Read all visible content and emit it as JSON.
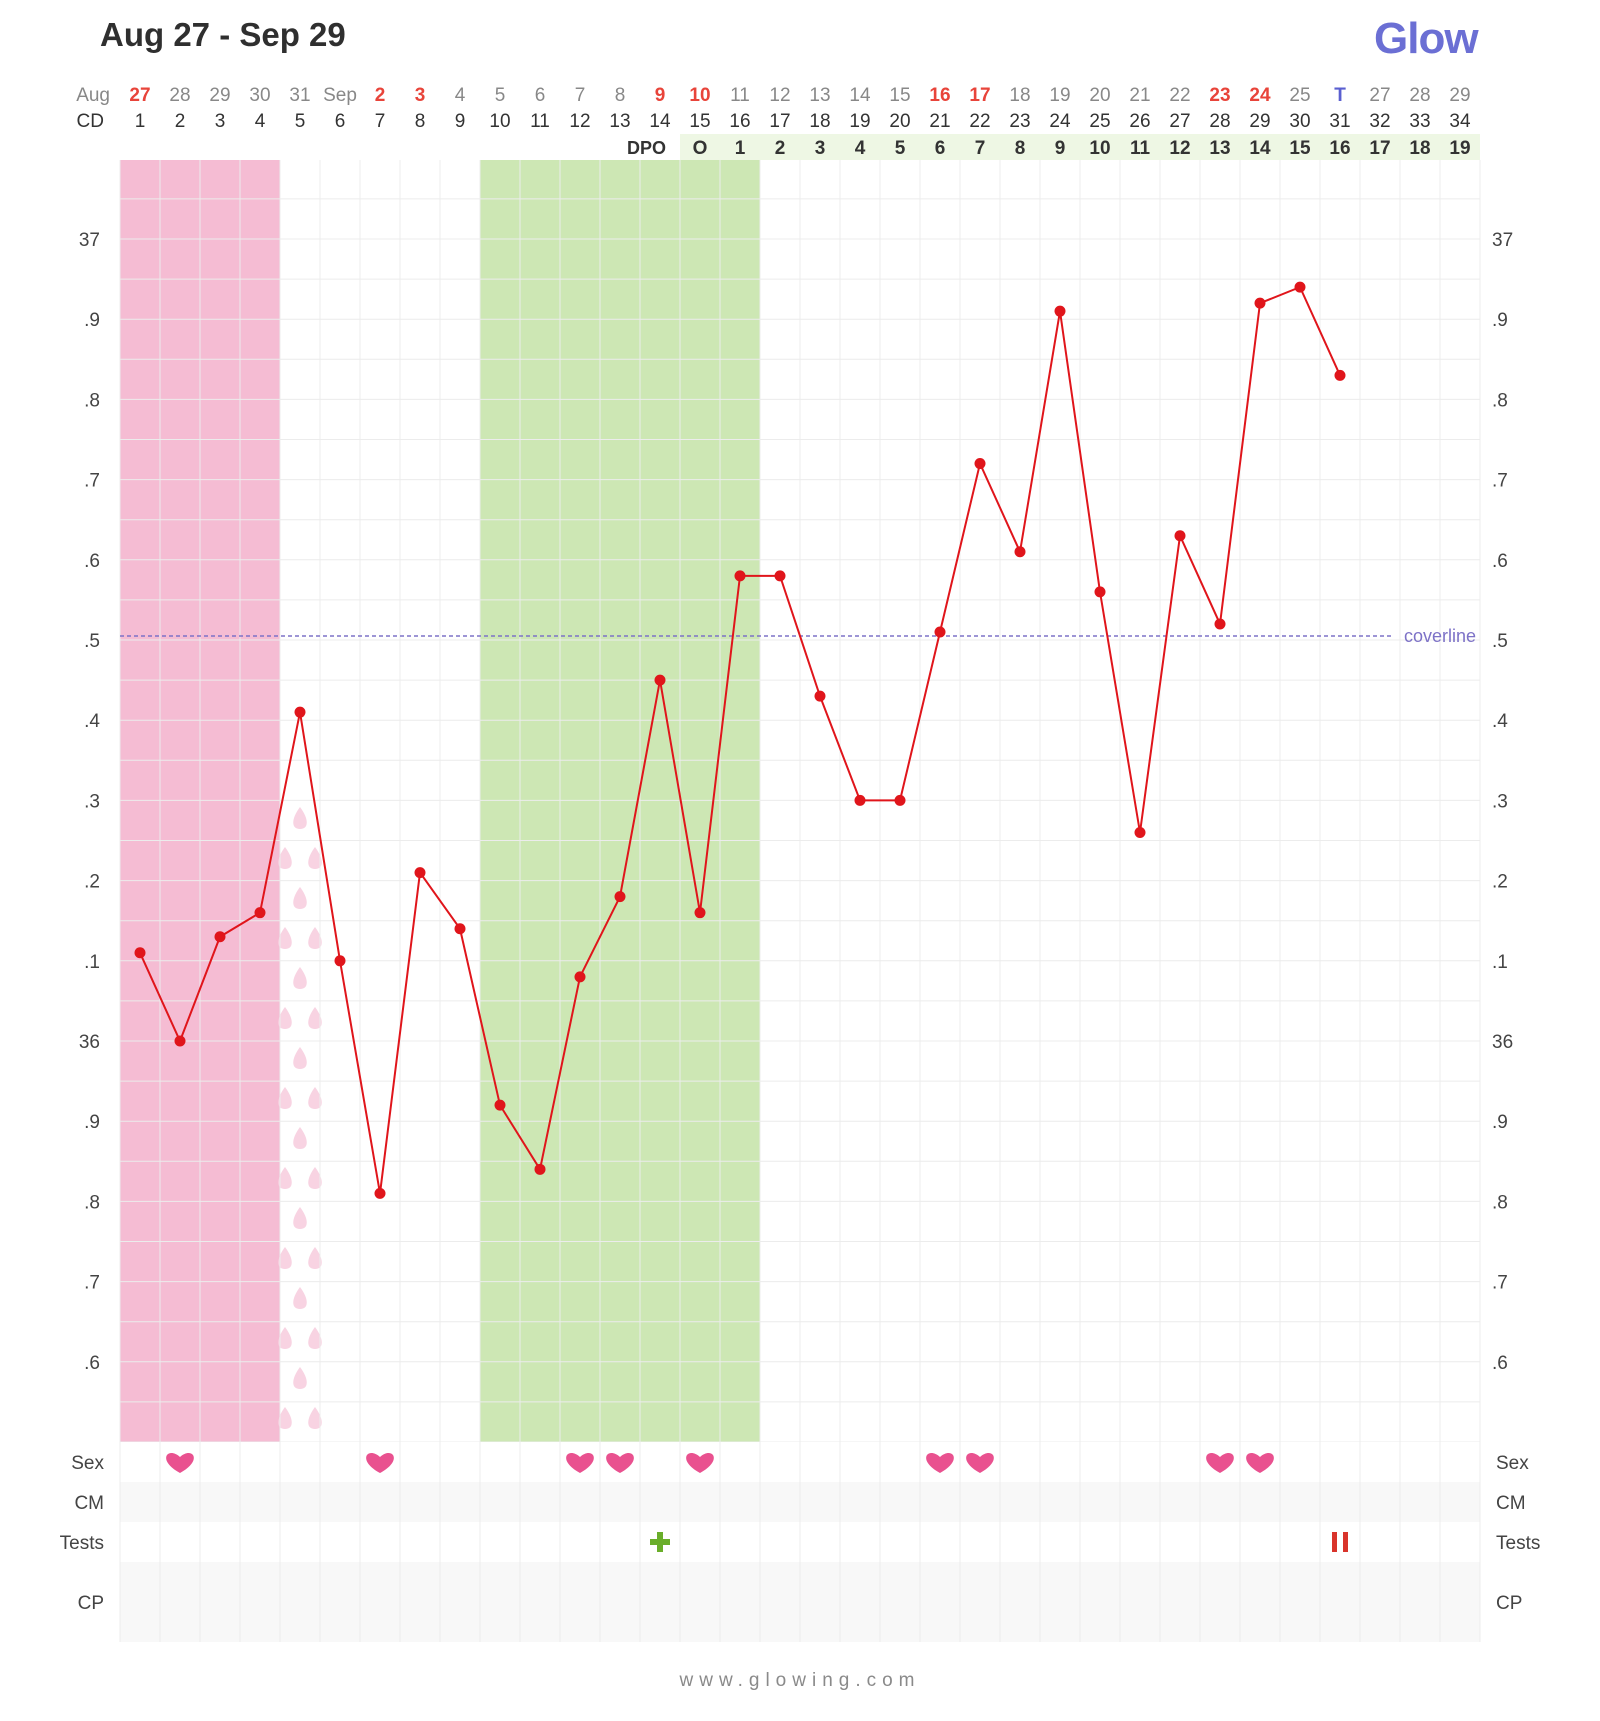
{
  "header": {
    "title": "Aug 27 - Sep 29",
    "logo": "Glow"
  },
  "footer": {
    "text": "www.glowing.com"
  },
  "row_labels": {
    "date_month_start": "Aug",
    "cd": "CD",
    "dpo": "DPO"
  },
  "left_axis_labels": [
    "37",
    ".9",
    ".8",
    ".7",
    ".6",
    ".5",
    ".4",
    ".3",
    ".2",
    ".1",
    "36",
    ".9",
    ".8",
    ".7",
    ".6"
  ],
  "right_axis_labels": [
    "37",
    ".9",
    ".8",
    ".7",
    ".6",
    ".5",
    ".4",
    ".3",
    ".2",
    ".1",
    "36",
    ".9",
    ".8",
    ".7",
    ".6"
  ],
  "coverline_label": "coverline",
  "bottom_rows": {
    "sex": "Sex",
    "cm": "CM",
    "tests": "Tests",
    "cp": "CP"
  },
  "colors": {
    "period": "#f5bcd3",
    "fertile": "#cde7b4",
    "line": "#e0151b",
    "heart": "#e9518f",
    "coverline": "#7d72c7",
    "dpo_bg": "#eef7e4",
    "highlight_date": "#e8443a",
    "today": "#5a5fd0",
    "test_positive": "#6aae2a",
    "test_pregnancy": "#d9342b"
  },
  "chart_data": {
    "type": "line",
    "title": "Aug 27 - Sep 29",
    "xlabel": "",
    "ylabel": "",
    "ylim": [
      35.5,
      37.1
    ],
    "grid": true,
    "dates": [
      "27",
      "28",
      "29",
      "30",
      "31",
      "Sep",
      "2",
      "3",
      "4",
      "5",
      "6",
      "7",
      "8",
      "9",
      "10",
      "11",
      "12",
      "13",
      "14",
      "15",
      "16",
      "17",
      "18",
      "19",
      "20",
      "21",
      "22",
      "23",
      "24",
      "25",
      "T",
      "27",
      "28",
      "29"
    ],
    "date_highlights": [
      "red",
      "",
      "",
      "",
      "",
      "",
      "red",
      "red",
      "",
      "",
      "",
      "",
      "",
      "red",
      "red",
      "",
      "",
      "",
      "",
      "",
      "red",
      "red",
      "",
      "",
      "",
      "",
      "",
      "red",
      "red",
      "",
      "today",
      "",
      "",
      ""
    ],
    "cycle_days": [
      "1",
      "2",
      "3",
      "4",
      "5",
      "6",
      "7",
      "8",
      "9",
      "10",
      "11",
      "12",
      "13",
      "14",
      "15",
      "16",
      "17",
      "18",
      "19",
      "20",
      "21",
      "22",
      "23",
      "24",
      "25",
      "26",
      "27",
      "28",
      "29",
      "30",
      "31",
      "32",
      "33",
      "34"
    ],
    "dpo": [
      "",
      "",
      "",
      "",
      "",
      "",
      "",
      "",
      "",
      "",
      "",
      "",
      "",
      "",
      "O",
      "1",
      "2",
      "3",
      "4",
      "5",
      "6",
      "7",
      "8",
      "9",
      "10",
      "11",
      "12",
      "13",
      "14",
      "15",
      "16",
      "17",
      "18",
      "19"
    ],
    "temperatures": [
      36.11,
      36.0,
      36.13,
      36.16,
      36.41,
      36.1,
      35.81,
      36.21,
      36.14,
      35.92,
      35.84,
      36.08,
      36.18,
      36.45,
      36.16,
      36.58,
      36.58,
      36.43,
      36.3,
      36.3,
      36.51,
      36.72,
      36.61,
      36.91,
      36.56,
      36.26,
      36.63,
      36.52,
      36.92,
      36.94,
      36.83,
      null,
      null,
      null
    ],
    "coverline": 36.505,
    "period_days": [
      1,
      2,
      3,
      4
    ],
    "spotting_day": 5,
    "fertile_window_days": [
      10,
      11,
      12,
      13,
      14,
      15,
      16
    ],
    "sex_days": [
      2,
      7,
      12,
      13,
      15,
      21,
      22,
      28,
      29
    ],
    "tests": [
      {
        "day": 14,
        "type": "ovulation-positive"
      },
      {
        "day": 31,
        "type": "pregnancy"
      }
    ]
  }
}
